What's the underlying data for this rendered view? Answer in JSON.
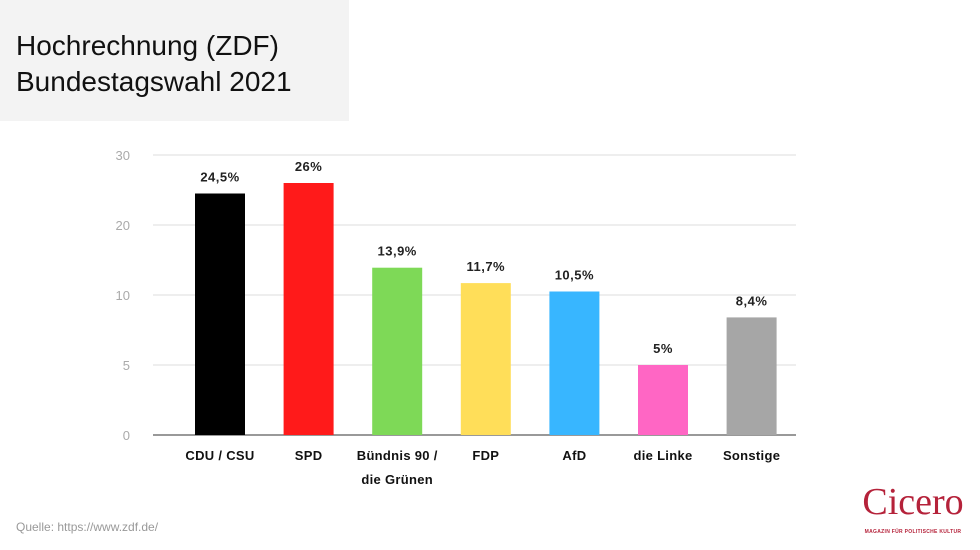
{
  "title_lines": [
    "Hochrechnung (ZDF)",
    "Bundestagswahl 2021"
  ],
  "source": "Quelle: https://www.zdf.de/",
  "logo": {
    "name": "Cicero",
    "tagline": "MAGAZIN FÜR POLITISCHE KULTUR"
  },
  "chart_data": {
    "type": "bar",
    "title": "Hochrechnung (ZDF) Bundestagswahl 2021",
    "categories": [
      [
        "CDU / CSU"
      ],
      [
        "SPD"
      ],
      [
        "Bündnis 90 /",
        "die Grünen"
      ],
      [
        "FDP"
      ],
      [
        "AfD"
      ],
      [
        "die Linke"
      ],
      [
        "Sonstige"
      ]
    ],
    "values": [
      24.5,
      26,
      13.9,
      11.7,
      10.5,
      5,
      8.4
    ],
    "data_labels": [
      "24,5%",
      "26%",
      "13,9%",
      "11,7%",
      "10,5%",
      "5%",
      "8,4%"
    ],
    "colors": [
      "#000000",
      "#ff1a1a",
      "#7ed957",
      "#ffde59",
      "#38b6ff",
      "#ff66c4",
      "#a6a6a6"
    ],
    "yticks": [
      0,
      5,
      10,
      20,
      30
    ],
    "ylim": [
      0,
      30
    ],
    "grid": true,
    "xlabel": "",
    "ylabel": ""
  }
}
